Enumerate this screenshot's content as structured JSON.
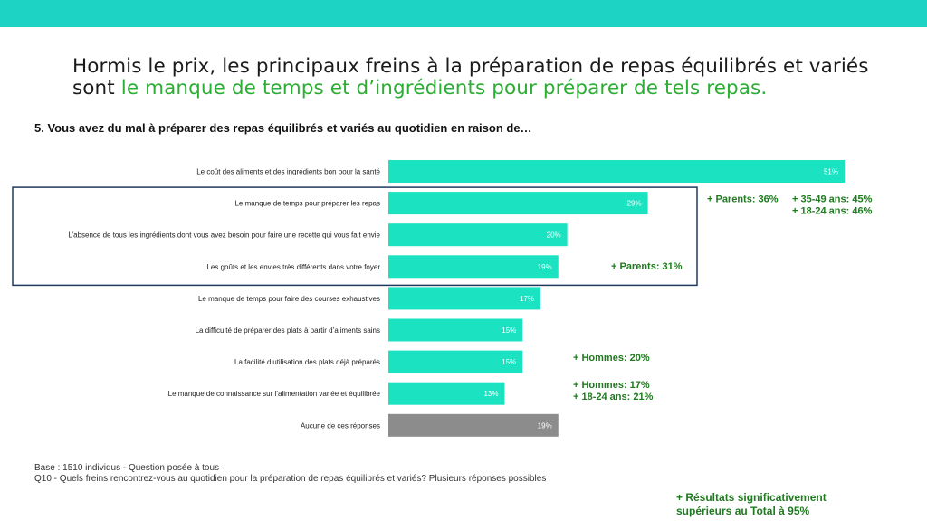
{
  "headline": {
    "part1": "Hormis le prix, les principaux freins à la préparation de repas équilibrés et variés sont ",
    "part2": "le manque de temps et d’ingrédients pour préparer de tels repas."
  },
  "chart_data": {
    "type": "bar",
    "orientation": "horizontal",
    "title": "5. Vous avez du mal à préparer des repas équilibrés et variés au quotidien en raison de…",
    "categories": [
      "Le coût des aliments et des ingrédients bon pour la santé",
      "Le manque de temps pour préparer les repas",
      "L’absence de tous les ingrédients dont vous avez besoin pour faire une recette qui vous fait envie",
      "Les goûts et les envies très différents dans votre foyer",
      "Le manque de temps pour faire des courses exhaustives",
      "La difficulté de préparer des plats à partir d’aliments sains",
      "La facilité d’utilisation des plats déjà préparés",
      "Le manque de connaissance sur l’alimentation variée et équilibrée",
      "Aucune de ces réponses"
    ],
    "values": [
      51,
      29,
      20,
      19,
      17,
      15,
      15,
      13,
      19
    ],
    "value_labels": [
      "51%",
      "29%",
      "20%",
      "19%",
      "17%",
      "15%",
      "15%",
      "13%",
      "19%"
    ],
    "bar_colors": [
      "#1be3c1",
      "#1be3c1",
      "#1be3c1",
      "#1be3c1",
      "#1be3c1",
      "#1be3c1",
      "#1be3c1",
      "#1be3c1",
      "#8c8c8c"
    ],
    "xlim": [
      0,
      51
    ],
    "grid": false,
    "highlight_box": "categories 2-4",
    "annotations": [
      {
        "category_index": 1,
        "lines": [
          "+ Parents: 36%"
        ]
      },
      {
        "category_index": 1,
        "lines": [
          "+ 35-49 ans: 45%",
          "+ 18-24 ans: 46%"
        ]
      },
      {
        "category_index": 3,
        "lines": [
          "+ Parents: 31%"
        ]
      },
      {
        "category_index": 6,
        "lines": [
          "+ Hommes: 20%"
        ]
      },
      {
        "category_index": 7,
        "lines": [
          "+ Hommes: 17%",
          "+ 18-24 ans: 21%"
        ]
      }
    ]
  },
  "notes": {
    "base": "Base : 1510 individus - Question posée à tous",
    "question": "Q10 - Quels freins rencontrez-vous au quotidien pour la préparation de repas équilibrés et variés? Plusieurs réponses possibles"
  },
  "legend_text": {
    "line1": "+ Résultats significativement",
    "line2": "supérieurs au Total à 95%"
  },
  "colors": {
    "topbar": "#1dd3c4",
    "bar": "#1be3c1",
    "bar_none": "#8c8c8c",
    "highlight": "#2cad33",
    "annotation": "#1f7a1f",
    "box": "#1f3a5f"
  }
}
